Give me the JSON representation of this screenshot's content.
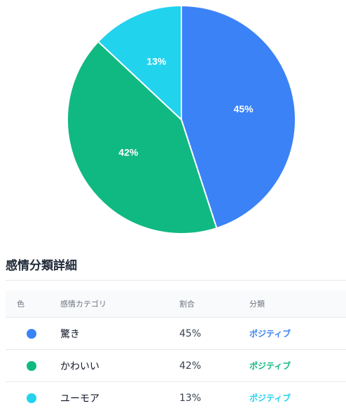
{
  "chart_data": {
    "type": "pie",
    "categories": [
      "驚き",
      "かわいい",
      "ユーモア"
    ],
    "values": [
      45,
      42,
      13
    ],
    "labels": [
      "45%",
      "42%",
      "13%"
    ],
    "colors": [
      "#3b82f6",
      "#10b981",
      "#22d3ee"
    ],
    "start_angle_deg": 0,
    "direction": "clockwise-from-top"
  },
  "section": {
    "title": "感情分類詳細"
  },
  "table": {
    "headers": {
      "color": "色",
      "category": "感情カテゴリ",
      "ratio": "割合",
      "classification": "分類"
    },
    "rows": [
      {
        "color": "#3b82f6",
        "category": "驚き",
        "ratio": "45%",
        "classification": "ポジティブ",
        "classification_color": "#3b82f6"
      },
      {
        "color": "#10b981",
        "category": "かわいい",
        "ratio": "42%",
        "classification": "ポジティブ",
        "classification_color": "#10b981"
      },
      {
        "color": "#22d3ee",
        "category": "ユーモア",
        "ratio": "13%",
        "classification": "ポジティブ",
        "classification_color": "#22d3ee"
      }
    ]
  }
}
